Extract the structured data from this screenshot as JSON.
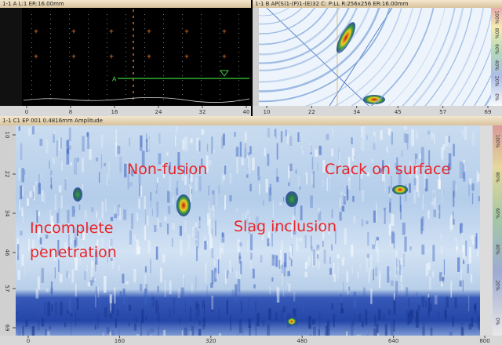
{
  "panels": {
    "a_scan": {
      "title": "1-1 A L:1 ER:16.00mm",
      "gate_label": "A",
      "x_ticks": [
        0,
        8,
        16,
        24,
        32,
        40
      ]
    },
    "s_scan": {
      "title": "1-1 B AP(S)1-(P)1-(E)32 C: P:LL R:256x256 ER:16.00mm",
      "x_ticks": [
        10,
        22,
        34,
        45,
        57,
        69
      ],
      "color_scale": [
        "100%",
        "80%",
        "60%",
        "40%",
        "20%",
        "0%"
      ]
    },
    "c_scan": {
      "title": "1-1 C1 EP 001 0.4816mm Amplitude",
      "x_ticks": [
        0,
        160,
        320,
        480,
        640,
        800
      ],
      "y_ticks": [
        10,
        22,
        34,
        46,
        57,
        69
      ],
      "color_scale": [
        "100%",
        "80%",
        "60%",
        "40%",
        "20%",
        "0%"
      ],
      "annotations": [
        "Non-fusion",
        "Crack on surface",
        "Incomplete",
        "penetration",
        "Slag inclusion"
      ]
    }
  }
}
